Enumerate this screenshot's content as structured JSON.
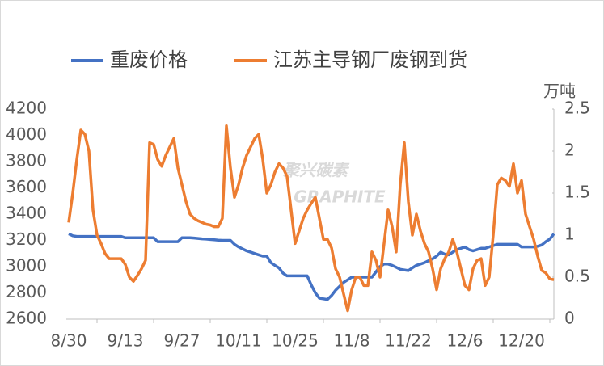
{
  "chart_data": {
    "type": "line",
    "legend": [
      "重废价格",
      "江苏主导钢厂废钢到货"
    ],
    "y2_label": "万吨",
    "watermark": {
      "text": "聚兴碳素",
      "subtext": "GRAPHITE"
    },
    "categories": [
      "8/30",
      null,
      null,
      null,
      null,
      null,
      null,
      null,
      null,
      null,
      null,
      null,
      null,
      null,
      "9/13",
      null,
      null,
      null,
      null,
      null,
      null,
      null,
      null,
      null,
      null,
      null,
      null,
      null,
      "9/27",
      null,
      null,
      null,
      null,
      null,
      null,
      null,
      null,
      null,
      null,
      null,
      null,
      null,
      "10/11",
      null,
      null,
      null,
      null,
      null,
      null,
      null,
      null,
      null,
      null,
      null,
      null,
      null,
      "10/25",
      null,
      null,
      null,
      null,
      null,
      null,
      null,
      null,
      null,
      null,
      null,
      null,
      null,
      "11/8",
      null,
      null,
      null,
      null,
      null,
      null,
      null,
      null,
      null,
      null,
      null,
      null,
      null,
      "11/22",
      null,
      null,
      null,
      null,
      null,
      null,
      null,
      null,
      null,
      null,
      null,
      null,
      null,
      "12/6",
      null,
      null,
      null,
      null,
      null,
      null,
      null,
      null,
      null,
      null,
      null,
      null,
      null,
      "12/20",
      null,
      null,
      null,
      null,
      null,
      null,
      null,
      null
    ],
    "series": [
      {
        "name": "重废价格",
        "color": "#4472c4",
        "axis": "y",
        "values": [
          3250,
          3235,
          3230,
          3230,
          3230,
          3230,
          3230,
          3230,
          3230,
          3230,
          3230,
          3230,
          3230,
          3230,
          3220,
          3220,
          3220,
          3220,
          3220,
          3220,
          3220,
          3220,
          3190,
          3190,
          3190,
          3190,
          3190,
          3190,
          3220,
          3220,
          3220,
          3218,
          3215,
          3212,
          3210,
          3207,
          3205,
          3202,
          3200,
          3200,
          3200,
          3170,
          3150,
          3135,
          3120,
          3110,
          3100,
          3090,
          3080,
          3080,
          3030,
          3010,
          2990,
          2950,
          2930,
          2930,
          2930,
          2930,
          2930,
          2930,
          2860,
          2800,
          2760,
          2755,
          2750,
          2780,
          2820,
          2850,
          2880,
          2900,
          2920,
          2920,
          2920,
          2920,
          2920,
          2920,
          2960,
          3000,
          3020,
          3020,
          3010,
          2995,
          2980,
          2975,
          2970,
          2990,
          3010,
          3020,
          3030,
          3045,
          3060,
          3080,
          3110,
          3095,
          3090,
          3110,
          3130,
          3140,
          3150,
          3130,
          3120,
          3130,
          3140,
          3140,
          3150,
          3160,
          3170,
          3170,
          3170,
          3170,
          3170,
          3170,
          3150,
          3150,
          3150,
          3150,
          3155,
          3165,
          3190,
          3210,
          3250
        ]
      },
      {
        "name": "江苏主导钢厂废钢到货",
        "color": "#ed7d31",
        "axis": "y2",
        "values": [
          1.15,
          1.5,
          1.9,
          2.25,
          2.2,
          2.0,
          1.3,
          1.0,
          0.9,
          0.78,
          0.72,
          0.72,
          0.72,
          0.72,
          0.65,
          0.5,
          0.45,
          0.52,
          0.6,
          0.7,
          2.1,
          2.08,
          1.9,
          1.82,
          1.95,
          2.05,
          2.15,
          1.8,
          1.6,
          1.4,
          1.25,
          1.2,
          1.17,
          1.15,
          1.13,
          1.12,
          1.1,
          1.1,
          1.2,
          2.3,
          1.8,
          1.45,
          1.6,
          1.8,
          1.95,
          2.05,
          2.15,
          2.2,
          1.9,
          1.5,
          1.6,
          1.75,
          1.85,
          1.8,
          1.7,
          1.3,
          0.9,
          1.05,
          1.2,
          1.3,
          1.38,
          1.45,
          1.2,
          0.95,
          0.95,
          0.85,
          0.6,
          0.5,
          0.3,
          0.1,
          0.35,
          0.5,
          0.5,
          0.4,
          0.4,
          0.8,
          0.7,
          0.5,
          0.9,
          1.3,
          1.1,
          0.8,
          1.6,
          2.1,
          1.4,
          1.0,
          1.25,
          1.05,
          0.9,
          0.8,
          0.6,
          0.35,
          0.6,
          0.72,
          0.8,
          0.95,
          0.8,
          0.6,
          0.4,
          0.35,
          0.6,
          0.7,
          0.72,
          0.4,
          0.5,
          1.0,
          1.6,
          1.68,
          1.65,
          1.58,
          1.85,
          1.5,
          1.65,
          1.25,
          1.1,
          0.95,
          0.75,
          0.58,
          0.55,
          0.48,
          0.47
        ]
      }
    ],
    "ylim": [
      2600,
      4200
    ],
    "yticks": [
      2600,
      2800,
      3000,
      3200,
      3400,
      3600,
      3800,
      4000,
      4200
    ],
    "y2lim": [
      0,
      2.5
    ],
    "y2ticks": [
      0,
      0.5,
      1,
      1.5,
      2,
      2.5
    ],
    "grid": false
  }
}
